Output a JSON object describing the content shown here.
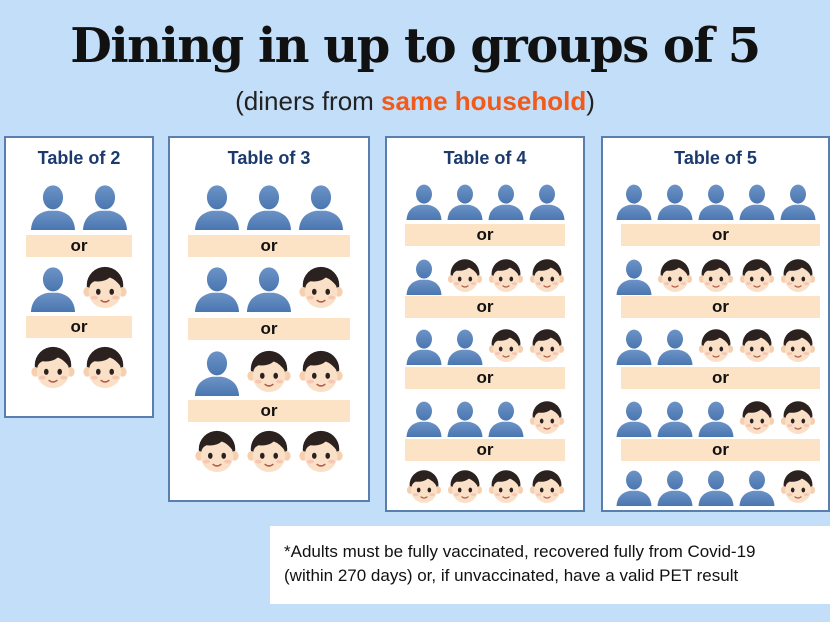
{
  "header": {
    "title": "Dining in up to groups of 5",
    "subtitle_prefix": "(diners from ",
    "subtitle_highlight": "same household",
    "subtitle_suffix": ")"
  },
  "tables": [
    {
      "title": "Table of 2",
      "separator": "or",
      "options": [
        [
          "adult",
          "adult"
        ],
        [
          "adult",
          "child"
        ],
        [
          "child",
          "child"
        ]
      ]
    },
    {
      "title": "Table of 3",
      "separator": "or",
      "options": [
        [
          "adult",
          "adult",
          "adult"
        ],
        [
          "adult",
          "adult",
          "child"
        ],
        [
          "adult",
          "child",
          "child"
        ],
        [
          "child",
          "child",
          "child"
        ]
      ]
    },
    {
      "title": "Table of 4",
      "separator": "or",
      "options": [
        [
          "adult",
          "adult",
          "adult",
          "adult"
        ],
        [
          "adult",
          "child",
          "child",
          "child"
        ],
        [
          "adult",
          "adult",
          "child",
          "child"
        ],
        [
          "adult",
          "adult",
          "adult",
          "child"
        ],
        [
          "child",
          "child",
          "child",
          "child"
        ]
      ]
    },
    {
      "title": "Table of 5",
      "separator": "or",
      "options": [
        [
          "adult",
          "adult",
          "adult",
          "adult",
          "adult"
        ],
        [
          "adult",
          "child",
          "child",
          "child",
          "child"
        ],
        [
          "adult",
          "adult",
          "child",
          "child",
          "child"
        ],
        [
          "adult",
          "adult",
          "adult",
          "child",
          "child"
        ],
        [
          "adult",
          "adult",
          "adult",
          "adult",
          "child"
        ]
      ]
    }
  ],
  "footnote": {
    "line1": "*Adults must be fully vaccinated, recovered fully from Covid-19",
    "line2": " (within 270 days) or, if unvaccinated, have a valid PET result"
  },
  "colors": {
    "background": "#c3def8",
    "adult_silhouette": "#4a76b0",
    "separator_bar": "#fde3c6",
    "highlight": "#f05a1a",
    "card_border": "#5a7fae"
  },
  "icons": {
    "adult": "adult-silhouette-icon",
    "child": "child-face-icon"
  }
}
